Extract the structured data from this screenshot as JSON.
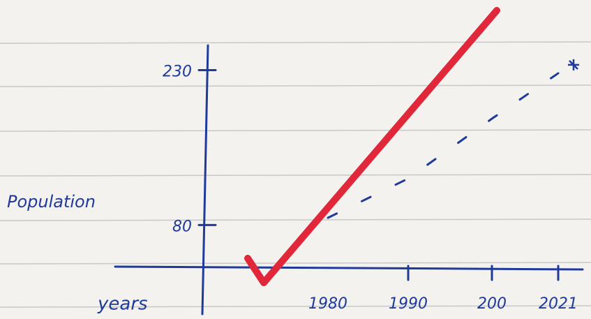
{
  "chart_data": {
    "type": "line",
    "y_label": "Population",
    "x_label": "years",
    "categories": [
      "1980",
      "1990",
      "200",
      "2021"
    ],
    "values": [
      87,
      125,
      183,
      227
    ],
    "color": "#1f3a9a",
    "dashed": true,
    "ylim": [
      39,
      254
    ],
    "yticks": [
      80,
      230
    ]
  }
}
